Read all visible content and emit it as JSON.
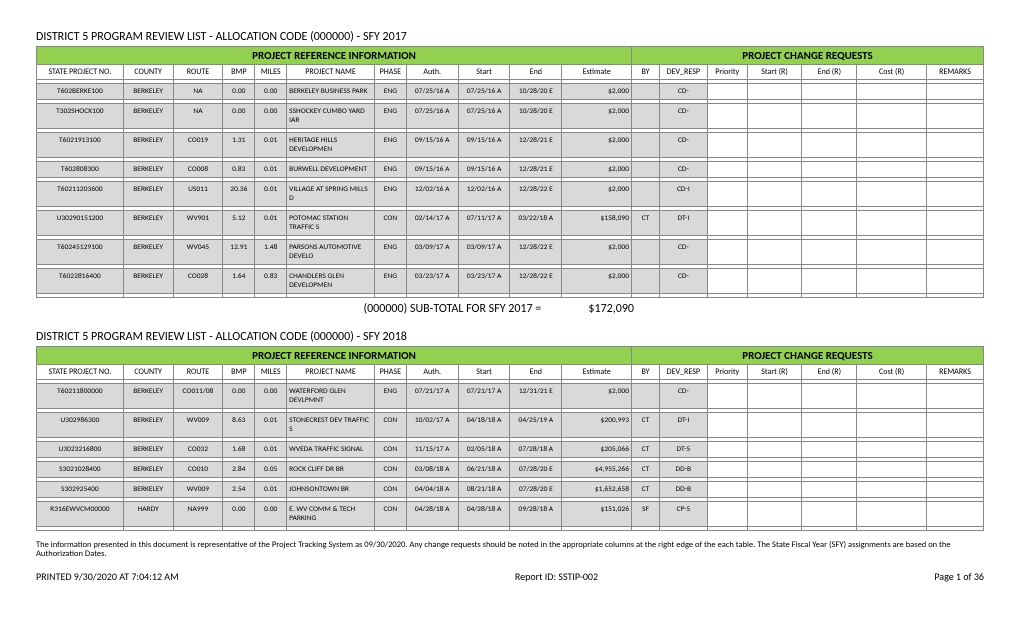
{
  "colors": {
    "header_green": "#92d050",
    "row_gray": "#d9d9d9",
    "border": "#888888",
    "bg": "#ffffff",
    "text": "#000000"
  },
  "columnHeaders": {
    "green_left": "PROJECT REFERENCE INFORMATION",
    "green_right": "PROJECT CHANGE REQUESTS",
    "cols": [
      "STATE PROJECT NO.",
      "COUNTY",
      "ROUTE",
      "BMP",
      "MILES",
      "PROJECT NAME",
      "PHASE",
      "Auth.",
      "Start",
      "End",
      "Estimate",
      "BY",
      "DEV_RESP",
      "Priority",
      "Start (R)",
      "End (R)",
      "Cost (R)",
      "REMARKS"
    ]
  },
  "sections": [
    {
      "title": "DISTRICT 5 PROGRAM REVIEW LIST - ALLOCATION CODE (000000) - SFY 2017",
      "subtotal_label": "(000000) SUB-TOTAL FOR SFY 2017 =",
      "subtotal_value": "$172,090",
      "rows": [
        {
          "proj": "T602BERKE100",
          "county": "BERKELEY",
          "route": "NA",
          "bmp": "0.00",
          "miles": "0.00",
          "name": "BERKELEY BUSINESS PARK",
          "phase": "ENG",
          "auth": "07/25/16 A",
          "start": "07/25/16 A",
          "end": "10/28/20 E",
          "est": "$2,000",
          "by": "",
          "dev": "CD-"
        },
        {
          "proj": "T302SHOCK100",
          "county": "BERKELEY",
          "route": "NA",
          "bmp": "0.00",
          "miles": "0.00",
          "name": "SSHOCKEY CUMBO YARD IAR",
          "phase": "ENG",
          "auth": "07/25/16 A",
          "start": "07/25/16 A",
          "end": "10/28/20 E",
          "est": "$2,000",
          "by": "",
          "dev": "CD-"
        },
        {
          "proj": "T6021913100",
          "county": "BERKELEY",
          "route": "CO019",
          "bmp": "1.31",
          "miles": "0.01",
          "name": "HERITAGE HILLS DEVELOPMEN",
          "phase": "ENG",
          "auth": "09/15/16 A",
          "start": "09/15/16 A",
          "end": "12/28/21 E",
          "est": "$2,000",
          "by": "",
          "dev": "CD-"
        },
        {
          "proj": "T602808300",
          "county": "BERKELEY",
          "route": "CO008",
          "bmp": "0.83",
          "miles": "0.01",
          "name": "BURWELL DEVELOPMENT",
          "phase": "ENG",
          "auth": "09/15/16 A",
          "start": "09/15/16 A",
          "end": "12/28/21 E",
          "est": "$2,000",
          "by": "",
          "dev": "CD-"
        },
        {
          "proj": "T60211203600",
          "county": "BERKELEY",
          "route": "US011",
          "bmp": "20.36",
          "miles": "0.01",
          "name": "VILLAGE AT SPRING MILLS D",
          "phase": "ENG",
          "auth": "12/02/16 A",
          "start": "12/02/16 A",
          "end": "12/28/22 E",
          "est": "$2,000",
          "by": "",
          "dev": "CD-I"
        },
        {
          "proj": "U30290151200",
          "county": "BERKELEY",
          "route": "WV901",
          "bmp": "5.12",
          "miles": "0.01",
          "name": "POTOMAC STATION TRAFFIC S",
          "phase": "CON",
          "auth": "02/14/17 A",
          "start": "07/11/17 A",
          "end": "03/22/18 A",
          "est": "$158,090",
          "by": "CT",
          "dev": "DT-I"
        },
        {
          "proj": "T60245129100",
          "county": "BERKELEY",
          "route": "WV045",
          "bmp": "12.91",
          "miles": "1.48",
          "name": "PARSONS AUTOMOTIVE DEVELO",
          "phase": "ENG",
          "auth": "03/09/17 A",
          "start": "03/09/17 A",
          "end": "12/28/22 E",
          "est": "$2,000",
          "by": "",
          "dev": "CD-"
        },
        {
          "proj": "T6022816400",
          "county": "BERKELEY",
          "route": "CO028",
          "bmp": "1.64",
          "miles": "0.83",
          "name": "CHANDLERS GLEN DEVELOPMEN",
          "phase": "ENG",
          "auth": "03/23/17 A",
          "start": "03/23/17 A",
          "end": "12/28/22 E",
          "est": "$2,000",
          "by": "",
          "dev": "CD-"
        }
      ]
    },
    {
      "title": "DISTRICT 5 PROGRAM REVIEW LIST - ALLOCATION CODE (000000) - SFY 2018",
      "subtotal_label": "",
      "subtotal_value": "",
      "rows": [
        {
          "proj": "T60211800000",
          "county": "BERKELEY",
          "route": "CO011/08",
          "bmp": "0.00",
          "miles": "0.00",
          "name": "WATERFORD GLEN DEVLPMNT",
          "phase": "ENG",
          "auth": "07/21/17 A",
          "start": "07/21/17 A",
          "end": "12/31/21 E",
          "est": "$2,000",
          "by": "",
          "dev": "CD-"
        },
        {
          "proj": "U302986300",
          "county": "BERKELEY",
          "route": "WV009",
          "bmp": "8.63",
          "miles": "0.01",
          "name": "STONECREST DEV TRAFFIC S",
          "phase": "CON",
          "auth": "10/02/17 A",
          "start": "04/18/18 A",
          "end": "04/25/19 A",
          "est": "$200,993",
          "by": "CT",
          "dev": "DT-I"
        },
        {
          "proj": "U3023216800",
          "county": "BERKELEY",
          "route": "CO032",
          "bmp": "1.68",
          "miles": "0.01",
          "name": "WVEDA TRAFFIC SIGNAL",
          "phase": "CON",
          "auth": "11/15/17 A",
          "start": "02/05/18 A",
          "end": "07/28/18 A",
          "est": "$205,066",
          "by": "CT",
          "dev": "DT-5"
        },
        {
          "proj": "S3021028400",
          "county": "BERKELEY",
          "route": "CO010",
          "bmp": "2.84",
          "miles": "0.05",
          "name": "ROCK CLIFF DR BR",
          "phase": "CON",
          "auth": "03/08/18 A",
          "start": "06/21/18 A",
          "end": "07/28/20 E",
          "est": "$4,955,266",
          "by": "CT",
          "dev": "DD-B"
        },
        {
          "proj": "S302925400",
          "county": "BERKELEY",
          "route": "WV009",
          "bmp": "2.54",
          "miles": "0.01",
          "name": "JOHNSONTOWN BR",
          "phase": "CON",
          "auth": "04/04/18 A",
          "start": "08/21/18 A",
          "end": "07/28/20 E",
          "est": "$1,652,658",
          "by": "CT",
          "dev": "DD-B"
        },
        {
          "proj": "R316EWVCM00000",
          "county": "HARDY",
          "route": "NA999",
          "bmp": "0.00",
          "miles": "0.00",
          "name": "E. WV COMM & TECH PARKING",
          "phase": "CON",
          "auth": "04/28/18 A",
          "start": "04/28/18 A",
          "end": "09/28/18 A",
          "est": "$151,026",
          "by": "SF",
          "dev": "CP-5"
        }
      ]
    }
  ],
  "footnote": "The information presented in this document is representative of the Project Tracking System as 09/30/2020.  Any change requests should be noted in the appropriate columns at the right edge of the each table.  The State Fiscal Year (SFY) assignments are based on the Authorization Dates.",
  "footer": {
    "left": "PRINTED 9/30/2020 AT 7:04:12 AM",
    "center": "Report ID: SSTIP-002",
    "right": "Page 1 of 36"
  }
}
